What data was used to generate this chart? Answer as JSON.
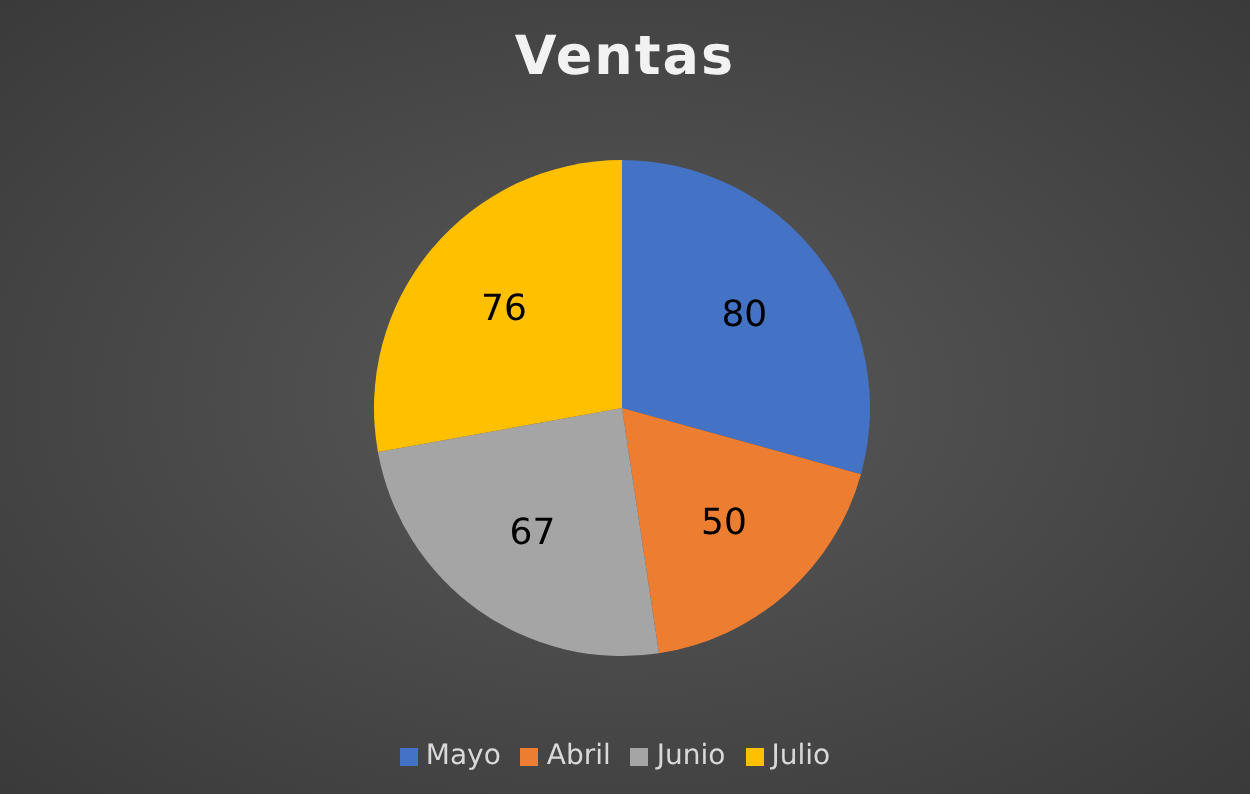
{
  "chart_data": {
    "type": "pie",
    "title": "Ventas",
    "categories": [
      "Mayo",
      "Abril",
      "Junio",
      "Julio"
    ],
    "values": [
      80,
      50,
      67,
      76
    ],
    "colors": [
      "#4472c4",
      "#ed7d31",
      "#a5a5a5",
      "#ffc000"
    ],
    "data_labels": true,
    "legend": "bottom"
  }
}
